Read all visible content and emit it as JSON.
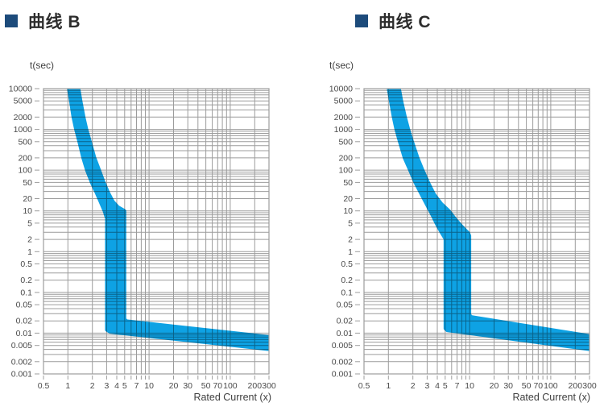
{
  "page": {
    "background": "#ffffff"
  },
  "theme": {
    "band_color": "#0ea2e4",
    "grid_color": "#9c9c9c",
    "tick_text_color": "#4a4a4a",
    "axis_label_color": "#3f3f3f",
    "title_color": "#2d2d2d",
    "bullet_color": "#1d4b7b"
  },
  "chart_data": [
    {
      "type": "area",
      "title": "曲线 B",
      "y_axis_unit": "t(sec)",
      "x_axis_label": "Rated Current (x)",
      "x_scale": "log",
      "y_scale": "log",
      "x_range": [
        0.5,
        300
      ],
      "y_range": [
        0.001,
        10000
      ],
      "x_ticks": [
        {
          "v": 0.5,
          "t": "0.5"
        },
        {
          "v": 1,
          "t": "1"
        },
        {
          "v": 2,
          "t": "2"
        },
        {
          "v": 3,
          "t": "3"
        },
        {
          "v": 4,
          "t": "4"
        },
        {
          "v": 5,
          "t": "5"
        },
        {
          "v": 7,
          "t": "7"
        },
        {
          "v": 10,
          "t": "10"
        },
        {
          "v": 20,
          "t": "20"
        },
        {
          "v": 30,
          "t": "30"
        },
        {
          "v": 50,
          "t": "50"
        },
        {
          "v": 70,
          "t": "70"
        },
        {
          "v": 100,
          "t": "100"
        },
        {
          "v": 200,
          "t": "200"
        },
        {
          "v": 300,
          "t": "300"
        }
      ],
      "y_ticks": [
        {
          "v": 10000,
          "t": "10000"
        },
        {
          "v": 5000,
          "t": "5000"
        },
        {
          "v": 2000,
          "t": "2000"
        },
        {
          "v": 1000,
          "t": "1000"
        },
        {
          "v": 500,
          "t": "500"
        },
        {
          "v": 200,
          "t": "200"
        },
        {
          "v": 100,
          "t": "100"
        },
        {
          "v": 50,
          "t": "50"
        },
        {
          "v": 20,
          "t": "20"
        },
        {
          "v": 10,
          "t": "10"
        },
        {
          "v": 5,
          "t": "5"
        },
        {
          "v": 2,
          "t": "2"
        },
        {
          "v": 1,
          "t": "1"
        },
        {
          "v": 0.5,
          "t": "0.5"
        },
        {
          "v": 0.2,
          "t": "0.2"
        },
        {
          "v": 0.1,
          "t": "0.1"
        },
        {
          "v": 0.05,
          "t": "0.05"
        },
        {
          "v": 0.02,
          "t": "0.02"
        },
        {
          "v": 0.01,
          "t": "0.01"
        },
        {
          "v": 0.005,
          "t": "0.005"
        },
        {
          "v": 0.002,
          "t": "0.002"
        },
        {
          "v": 0.001,
          "t": "0.001"
        }
      ],
      "band": {
        "description": "tripping band (x = multiple of rated current, t = seconds)",
        "upper": [
          [
            1.36,
            10000
          ],
          [
            1.44,
            5000
          ],
          [
            1.57,
            2000
          ],
          [
            1.7,
            1000
          ],
          [
            1.88,
            500
          ],
          [
            2.14,
            200
          ],
          [
            2.44,
            100
          ],
          [
            2.78,
            50
          ],
          [
            3.15,
            28
          ],
          [
            3.6,
            17
          ],
          [
            4.15,
            12.5
          ],
          [
            4.7,
            10.8
          ],
          [
            5.0,
            10
          ],
          [
            5.0,
            0.022
          ],
          [
            5.3,
            0.0198
          ],
          [
            300,
            0.0082
          ]
        ],
        "lower": [
          [
            1.02,
            10000
          ],
          [
            1.08,
            5000
          ],
          [
            1.16,
            2000
          ],
          [
            1.25,
            1000
          ],
          [
            1.37,
            500
          ],
          [
            1.53,
            200
          ],
          [
            1.7,
            100
          ],
          [
            1.95,
            50
          ],
          [
            2.2,
            30
          ],
          [
            2.5,
            17
          ],
          [
            2.8,
            10
          ],
          [
            3.0,
            6.5
          ],
          [
            3.0,
            0.012
          ],
          [
            3.3,
            0.0106
          ],
          [
            300,
            0.004
          ]
        ]
      }
    },
    {
      "type": "area",
      "title": "曲线 C",
      "y_axis_unit": "t(sec)",
      "x_axis_label": "Rated Current (x)",
      "x_scale": "log",
      "y_scale": "log",
      "x_range": [
        0.5,
        300
      ],
      "y_range": [
        0.001,
        10000
      ],
      "x_ticks": [
        {
          "v": 0.5,
          "t": "0.5"
        },
        {
          "v": 1,
          "t": "1"
        },
        {
          "v": 2,
          "t": "2"
        },
        {
          "v": 3,
          "t": "3"
        },
        {
          "v": 4,
          "t": "4"
        },
        {
          "v": 5,
          "t": "5"
        },
        {
          "v": 7,
          "t": "7"
        },
        {
          "v": 10,
          "t": "10"
        },
        {
          "v": 20,
          "t": "20"
        },
        {
          "v": 30,
          "t": "30"
        },
        {
          "v": 50,
          "t": "50"
        },
        {
          "v": 70,
          "t": "70"
        },
        {
          "v": 100,
          "t": "100"
        },
        {
          "v": 200,
          "t": "200"
        },
        {
          "v": 300,
          "t": "300"
        }
      ],
      "y_ticks": [
        {
          "v": 10000,
          "t": "10000"
        },
        {
          "v": 5000,
          "t": "5000"
        },
        {
          "v": 2000,
          "t": "2000"
        },
        {
          "v": 1000,
          "t": "1000"
        },
        {
          "v": 500,
          "t": "500"
        },
        {
          "v": 200,
          "t": "200"
        },
        {
          "v": 100,
          "t": "100"
        },
        {
          "v": 50,
          "t": "50"
        },
        {
          "v": 20,
          "t": "20"
        },
        {
          "v": 10,
          "t": "10"
        },
        {
          "v": 5,
          "t": "5"
        },
        {
          "v": 2,
          "t": "2"
        },
        {
          "v": 1,
          "t": "1"
        },
        {
          "v": 0.5,
          "t": "0.5"
        },
        {
          "v": 0.2,
          "t": "0.2"
        },
        {
          "v": 0.1,
          "t": "0.1"
        },
        {
          "v": 0.05,
          "t": "0.05"
        },
        {
          "v": 0.02,
          "t": "0.02"
        },
        {
          "v": 0.01,
          "t": "0.01"
        },
        {
          "v": 0.005,
          "t": "0.005"
        },
        {
          "v": 0.002,
          "t": "0.002"
        },
        {
          "v": 0.001,
          "t": "0.001"
        }
      ],
      "band": {
        "description": "tripping band (x = multiple of rated current, t = seconds)",
        "upper": [
          [
            1.36,
            10000
          ],
          [
            1.45,
            5000
          ],
          [
            1.61,
            2000
          ],
          [
            1.77,
            1000
          ],
          [
            1.97,
            500
          ],
          [
            2.3,
            200
          ],
          [
            2.65,
            100
          ],
          [
            3.1,
            50
          ],
          [
            3.7,
            25
          ],
          [
            4.5,
            15
          ],
          [
            5.6,
            10
          ],
          [
            6.6,
            6.5
          ],
          [
            7.8,
            4.4
          ],
          [
            9.0,
            3.3
          ],
          [
            9.7,
            2.85
          ],
          [
            10.0,
            2.45
          ],
          [
            10.0,
            0.028
          ],
          [
            10.5,
            0.0252
          ],
          [
            300,
            0.0086
          ]
        ],
        "lower": [
          [
            1.0,
            10000
          ],
          [
            1.06,
            5000
          ],
          [
            1.15,
            2000
          ],
          [
            1.24,
            1000
          ],
          [
            1.37,
            500
          ],
          [
            1.57,
            200
          ],
          [
            1.83,
            100
          ],
          [
            2.13,
            50
          ],
          [
            2.55,
            25
          ],
          [
            3.0,
            13.5
          ],
          [
            3.45,
            8
          ],
          [
            3.95,
            4.6
          ],
          [
            4.5,
            2.9
          ],
          [
            5.0,
            2.05
          ],
          [
            5.0,
            0.013
          ],
          [
            5.3,
            0.0116
          ],
          [
            300,
            0.004
          ]
        ]
      }
    }
  ]
}
